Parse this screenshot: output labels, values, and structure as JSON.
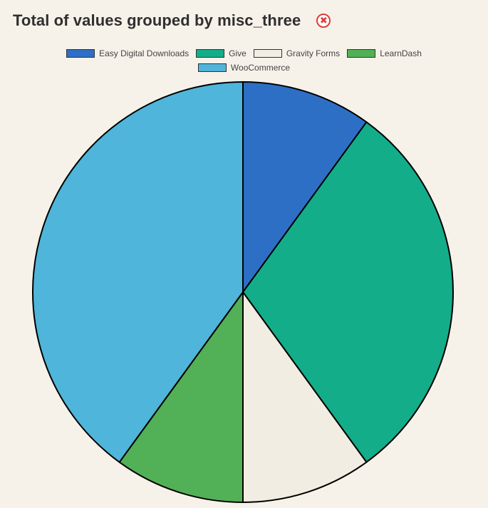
{
  "chart_data": {
    "type": "pie",
    "title": "Total of values grouped by misc_three",
    "categories": [
      "Easy Digital Downloads",
      "Give",
      "Gravity Forms",
      "LearnDash",
      "WooCommerce"
    ],
    "values": [
      1,
      3,
      1,
      1,
      4
    ],
    "colors": [
      "#2e6fc6",
      "#14ad8a",
      "#f2ede2",
      "#52b057",
      "#4fb5da"
    ],
    "legend_position": "top",
    "legend_rows": [
      [
        0,
        1,
        2,
        3
      ],
      [
        4
      ]
    ]
  },
  "header": {
    "title": "Total of values grouped by misc_three",
    "close_icon": "close-circle-icon",
    "close_glyph": "✖",
    "close_color": "#e23b3b"
  }
}
